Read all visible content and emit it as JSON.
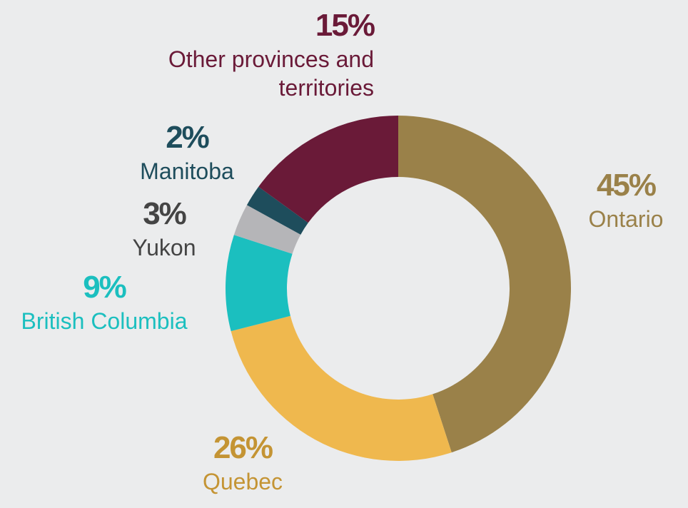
{
  "chart_data": {
    "type": "donut",
    "categories": [
      "Ontario",
      "Quebec",
      "British Columbia",
      "Yukon",
      "Manitoba",
      "Other provinces and territories"
    ],
    "values": [
      45,
      26,
      9,
      3,
      2,
      15
    ],
    "value_labels": [
      "45%",
      "26%",
      "9%",
      "3%",
      "2%",
      "15%"
    ],
    "colors": [
      "#9a8149",
      "#efb84e",
      "#1bbfbf",
      "#b5b5b8",
      "#1e4d5c",
      "#6a1a38"
    ],
    "label_colors": [
      "#9a8149",
      "#c49434",
      "#1bbfbf",
      "#444444",
      "#1e4d5c",
      "#6a1a38"
    ]
  }
}
